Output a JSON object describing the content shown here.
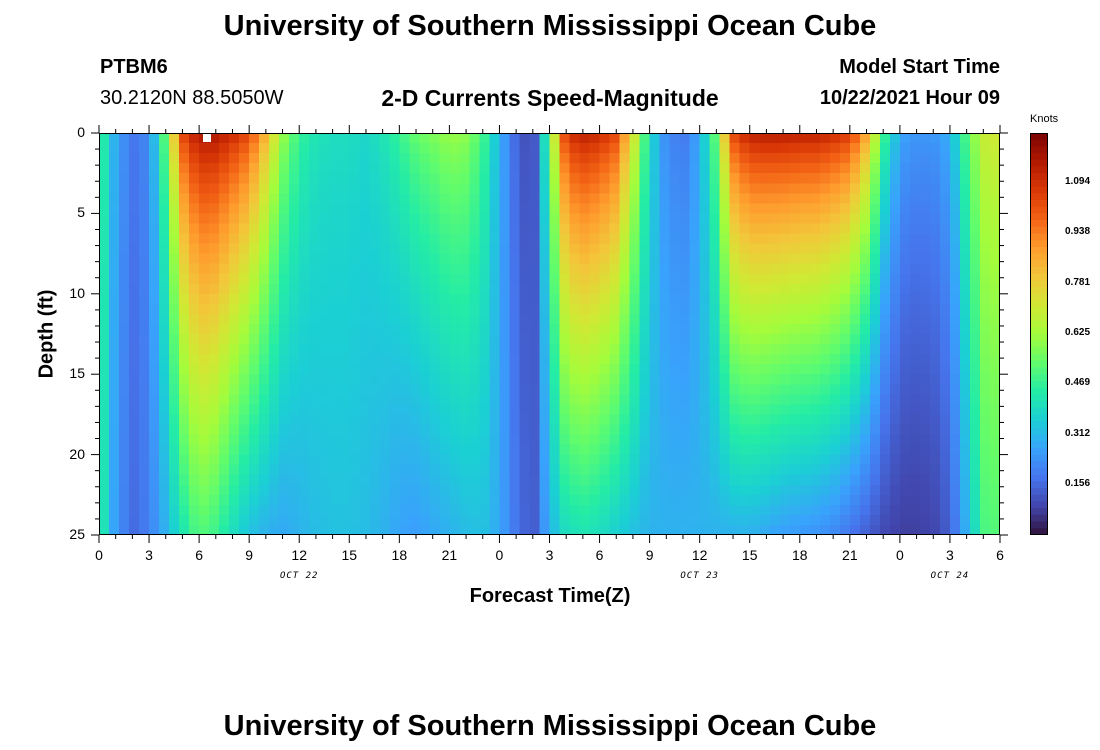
{
  "header": {
    "title": "University of Southern Mississippi Ocean Cube",
    "station": "PTBM6",
    "coords": "30.2120N  88.5050W",
    "subtitle": "2-D Currents Speed-Magnitude",
    "model_label": "Model Start Time",
    "model_time": "10/22/2021 Hour 09"
  },
  "footer": {
    "title": "University of Southern Mississippi Ocean Cube"
  },
  "chart_data": {
    "type": "heatmap",
    "title": "2-D Currents Speed-Magnitude",
    "xlabel": "Forecast Time(Z)",
    "ylabel": "Depth (ft)",
    "x_ticks": [
      "0",
      "3",
      "6",
      "9",
      "12",
      "15",
      "18",
      "21",
      "0",
      "3",
      "6",
      "9",
      "12",
      "15",
      "18",
      "21",
      "0",
      "3",
      "6"
    ],
    "x_day_labels": [
      {
        "label": "OCT 22",
        "at_hours": 12
      },
      {
        "label": "OCT 23",
        "at_hours": 36
      },
      {
        "label": "OCT 24",
        "at_hours": 51
      }
    ],
    "x_range_hours": [
      0,
      54
    ],
    "y_ticks": [
      "0",
      "5",
      "10",
      "15",
      "20",
      "25"
    ],
    "y_range": [
      0,
      25
    ],
    "colorbar": {
      "units": "Knots",
      "ticks": [
        "1.094",
        "0.938",
        "0.781",
        "0.625",
        "0.469",
        "0.312",
        "0.156"
      ],
      "tick_values": [
        1.094,
        0.938,
        0.781,
        0.625,
        0.469,
        0.312,
        0.156
      ],
      "range": [
        0,
        1.25
      ],
      "colors": [
        "#30123b",
        "#4145ab",
        "#4675ed",
        "#39a2fc",
        "#1bcfd4",
        "#24eca6",
        "#61fc6c",
        "#a4fc3b",
        "#d1e834",
        "#f3c63a",
        "#fe9b2d",
        "#f36315",
        "#d93806",
        "#b11901",
        "#7a0403"
      ]
    },
    "profiles": [
      {
        "hour": 0,
        "surface": 0.5,
        "bottom": 0.48
      },
      {
        "hour": 1,
        "surface": 0.28,
        "bottom": 0.25
      },
      {
        "hour": 2,
        "surface": 0.18,
        "bottom": 0.16
      },
      {
        "hour": 3,
        "surface": 0.22,
        "bottom": 0.2
      },
      {
        "hour": 4,
        "surface": 0.55,
        "bottom": 0.3
      },
      {
        "hour": 5,
        "surface": 1.05,
        "bottom": 0.42
      },
      {
        "hour": 6,
        "surface": 1.18,
        "bottom": 0.52
      },
      {
        "hour": 7,
        "surface": 1.18,
        "bottom": 0.48
      },
      {
        "hour": 8,
        "surface": 1.12,
        "bottom": 0.4
      },
      {
        "hour": 9,
        "surface": 1.05,
        "bottom": 0.33
      },
      {
        "hour": 10,
        "surface": 0.85,
        "bottom": 0.3
      },
      {
        "hour": 11,
        "surface": 0.62,
        "bottom": 0.28
      },
      {
        "hour": 12,
        "surface": 0.48,
        "bottom": 0.3
      },
      {
        "hour": 13,
        "surface": 0.42,
        "bottom": 0.32
      },
      {
        "hour": 14,
        "surface": 0.4,
        "bottom": 0.33
      },
      {
        "hour": 15,
        "surface": 0.4,
        "bottom": 0.33
      },
      {
        "hour": 16,
        "surface": 0.38,
        "bottom": 0.32
      },
      {
        "hour": 17,
        "surface": 0.42,
        "bottom": 0.3
      },
      {
        "hour": 18,
        "surface": 0.48,
        "bottom": 0.27
      },
      {
        "hour": 19,
        "surface": 0.55,
        "bottom": 0.26
      },
      {
        "hour": 20,
        "surface": 0.58,
        "bottom": 0.28
      },
      {
        "hour": 21,
        "surface": 0.62,
        "bottom": 0.3
      },
      {
        "hour": 22,
        "surface": 0.6,
        "bottom": 0.32
      },
      {
        "hour": 23,
        "surface": 0.5,
        "bottom": 0.33
      },
      {
        "hour": 24,
        "surface": 0.3,
        "bottom": 0.28
      },
      {
        "hour": 25,
        "surface": 0.15,
        "bottom": 0.18
      },
      {
        "hour": 26,
        "surface": 0.08,
        "bottom": 0.12
      },
      {
        "hour": 27,
        "surface": 0.55,
        "bottom": 0.3
      },
      {
        "hour": 28,
        "surface": 1.1,
        "bottom": 0.4
      },
      {
        "hour": 29,
        "surface": 1.15,
        "bottom": 0.42
      },
      {
        "hour": 30,
        "surface": 1.12,
        "bottom": 0.4
      },
      {
        "hour": 31,
        "surface": 1.05,
        "bottom": 0.36
      },
      {
        "hour": 32,
        "surface": 0.75,
        "bottom": 0.33
      },
      {
        "hour": 33,
        "surface": 0.4,
        "bottom": 0.3
      },
      {
        "hour": 34,
        "surface": 0.22,
        "bottom": 0.3
      },
      {
        "hour": 35,
        "surface": 0.18,
        "bottom": 0.3
      },
      {
        "hour": 36,
        "surface": 0.28,
        "bottom": 0.3
      },
      {
        "hour": 37,
        "surface": 0.55,
        "bottom": 0.3
      },
      {
        "hour": 38,
        "surface": 1.05,
        "bottom": 0.3
      },
      {
        "hour": 39,
        "surface": 1.15,
        "bottom": 0.3
      },
      {
        "hour": 40,
        "surface": 1.16,
        "bottom": 0.28
      },
      {
        "hour": 41,
        "surface": 1.16,
        "bottom": 0.26
      },
      {
        "hour": 42,
        "surface": 1.15,
        "bottom": 0.25
      },
      {
        "hour": 43,
        "surface": 1.15,
        "bottom": 0.24
      },
      {
        "hour": 44,
        "surface": 1.12,
        "bottom": 0.22
      },
      {
        "hour": 45,
        "surface": 1.08,
        "bottom": 0.18
      },
      {
        "hour": 46,
        "surface": 0.88,
        "bottom": 0.14
      },
      {
        "hour": 47,
        "surface": 0.5,
        "bottom": 0.1
      },
      {
        "hour": 48,
        "surface": 0.28,
        "bottom": 0.08
      },
      {
        "hour": 49,
        "surface": 0.25,
        "bottom": 0.08
      },
      {
        "hour": 50,
        "surface": 0.25,
        "bottom": 0.09
      },
      {
        "hour": 51,
        "surface": 0.3,
        "bottom": 0.14
      },
      {
        "hour": 52,
        "surface": 0.52,
        "bottom": 0.3
      },
      {
        "hour": 53,
        "surface": 0.7,
        "bottom": 0.5
      },
      {
        "hour": 54,
        "surface": 0.72,
        "bottom": 0.52
      }
    ]
  }
}
